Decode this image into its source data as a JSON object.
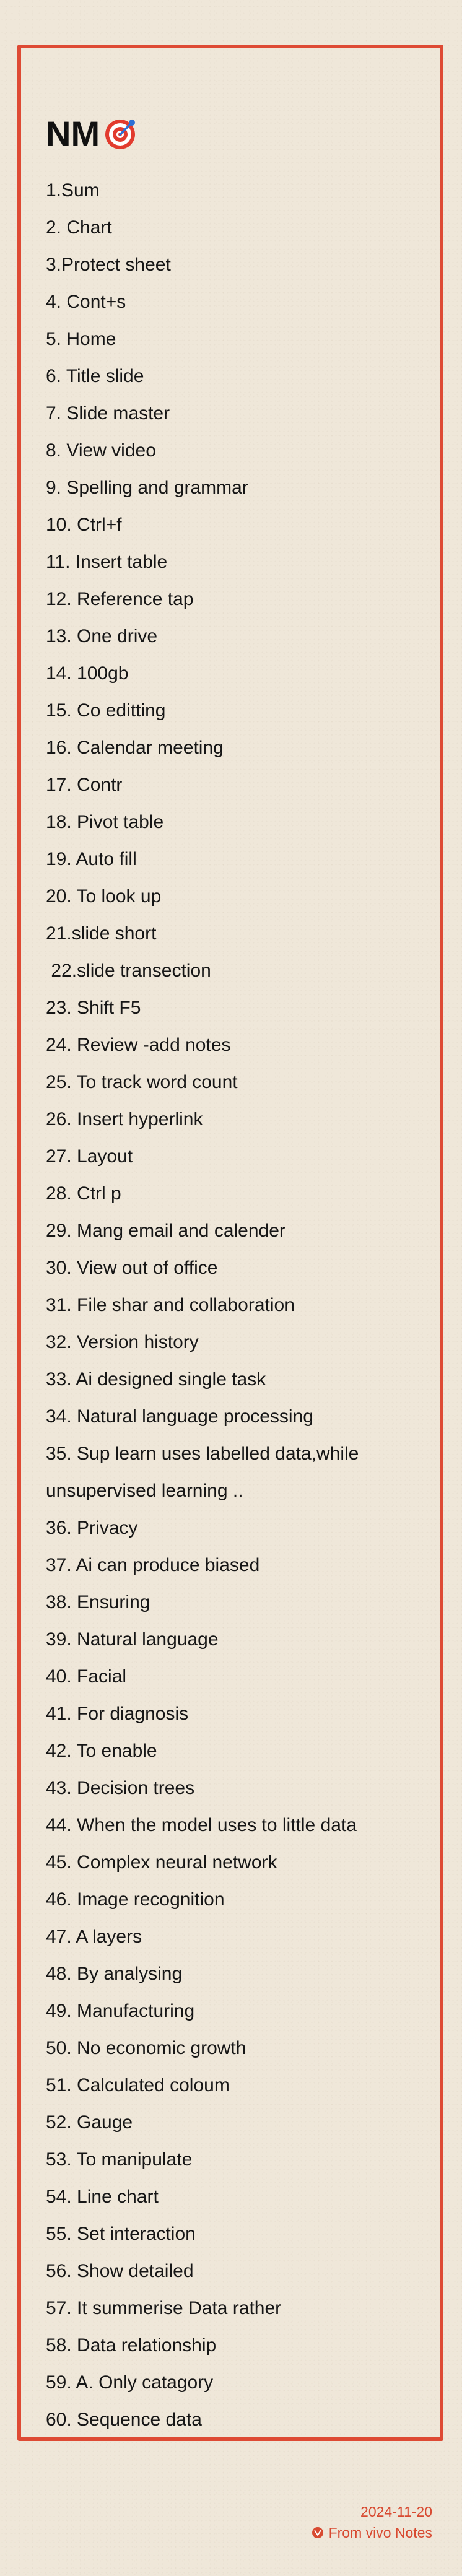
{
  "note": {
    "title": "NM",
    "title_icon": "target-emoji-icon",
    "items": [
      "1.Sum",
      "2. Chart",
      "3.Protect sheet",
      "4. Cont+s",
      "5. Home",
      "6. Title slide",
      "7. Slide master",
      "8. View video",
      "9. Spelling and grammar",
      "10. Ctrl+f",
      "11. Insert table",
      "12. Reference tap",
      "13. One drive",
      "14. 100gb",
      "15. Co editting",
      "16. Calendar meeting",
      "17. Contr",
      "18. Pivot table",
      "19. Auto fill",
      "20. To look up",
      "21.slide short",
      " 22.slide transection",
      "23. Shift F5",
      "24. Review -add notes",
      "25. To track word count",
      "26. Insert hyperlink",
      "27. Layout",
      "28. Ctrl p",
      "29. Mang email and calender",
      "30. View out of office",
      "31. File shar and collaboration",
      "32. Version history",
      "33. Ai designed single task",
      "34. Natural language processing",
      "35. Sup learn uses labelled data,while",
      "unsupervised learning ..",
      "36. Privacy",
      "37. Ai can produce biased",
      "38. Ensuring",
      "39. Natural language",
      "40. Facial",
      "41. For diagnosis",
      "42. To enable",
      "43. Decision trees",
      "44. When the model uses to little data",
      "45. Complex neural network",
      "46. Image recognition",
      "47. A layers",
      "48. By analysing",
      "49. Manufacturing",
      "50. No economic growth",
      "51. Calculated coloum",
      "52. Gauge",
      "53. To manipulate",
      "54. Line chart",
      "55. Set interaction",
      "56. Show detailed",
      "57. It summerise Data rather",
      "58. Data relationship",
      "59. A. Only catagory",
      "60. Sequence data"
    ]
  },
  "footer": {
    "date": "2024-11-20",
    "source": "From vivo Notes",
    "source_icon": "vivo-notes-icon"
  },
  "colors": {
    "background": "#efe7d9",
    "frame": "#de4a34",
    "footer_text": "#d84a31"
  }
}
